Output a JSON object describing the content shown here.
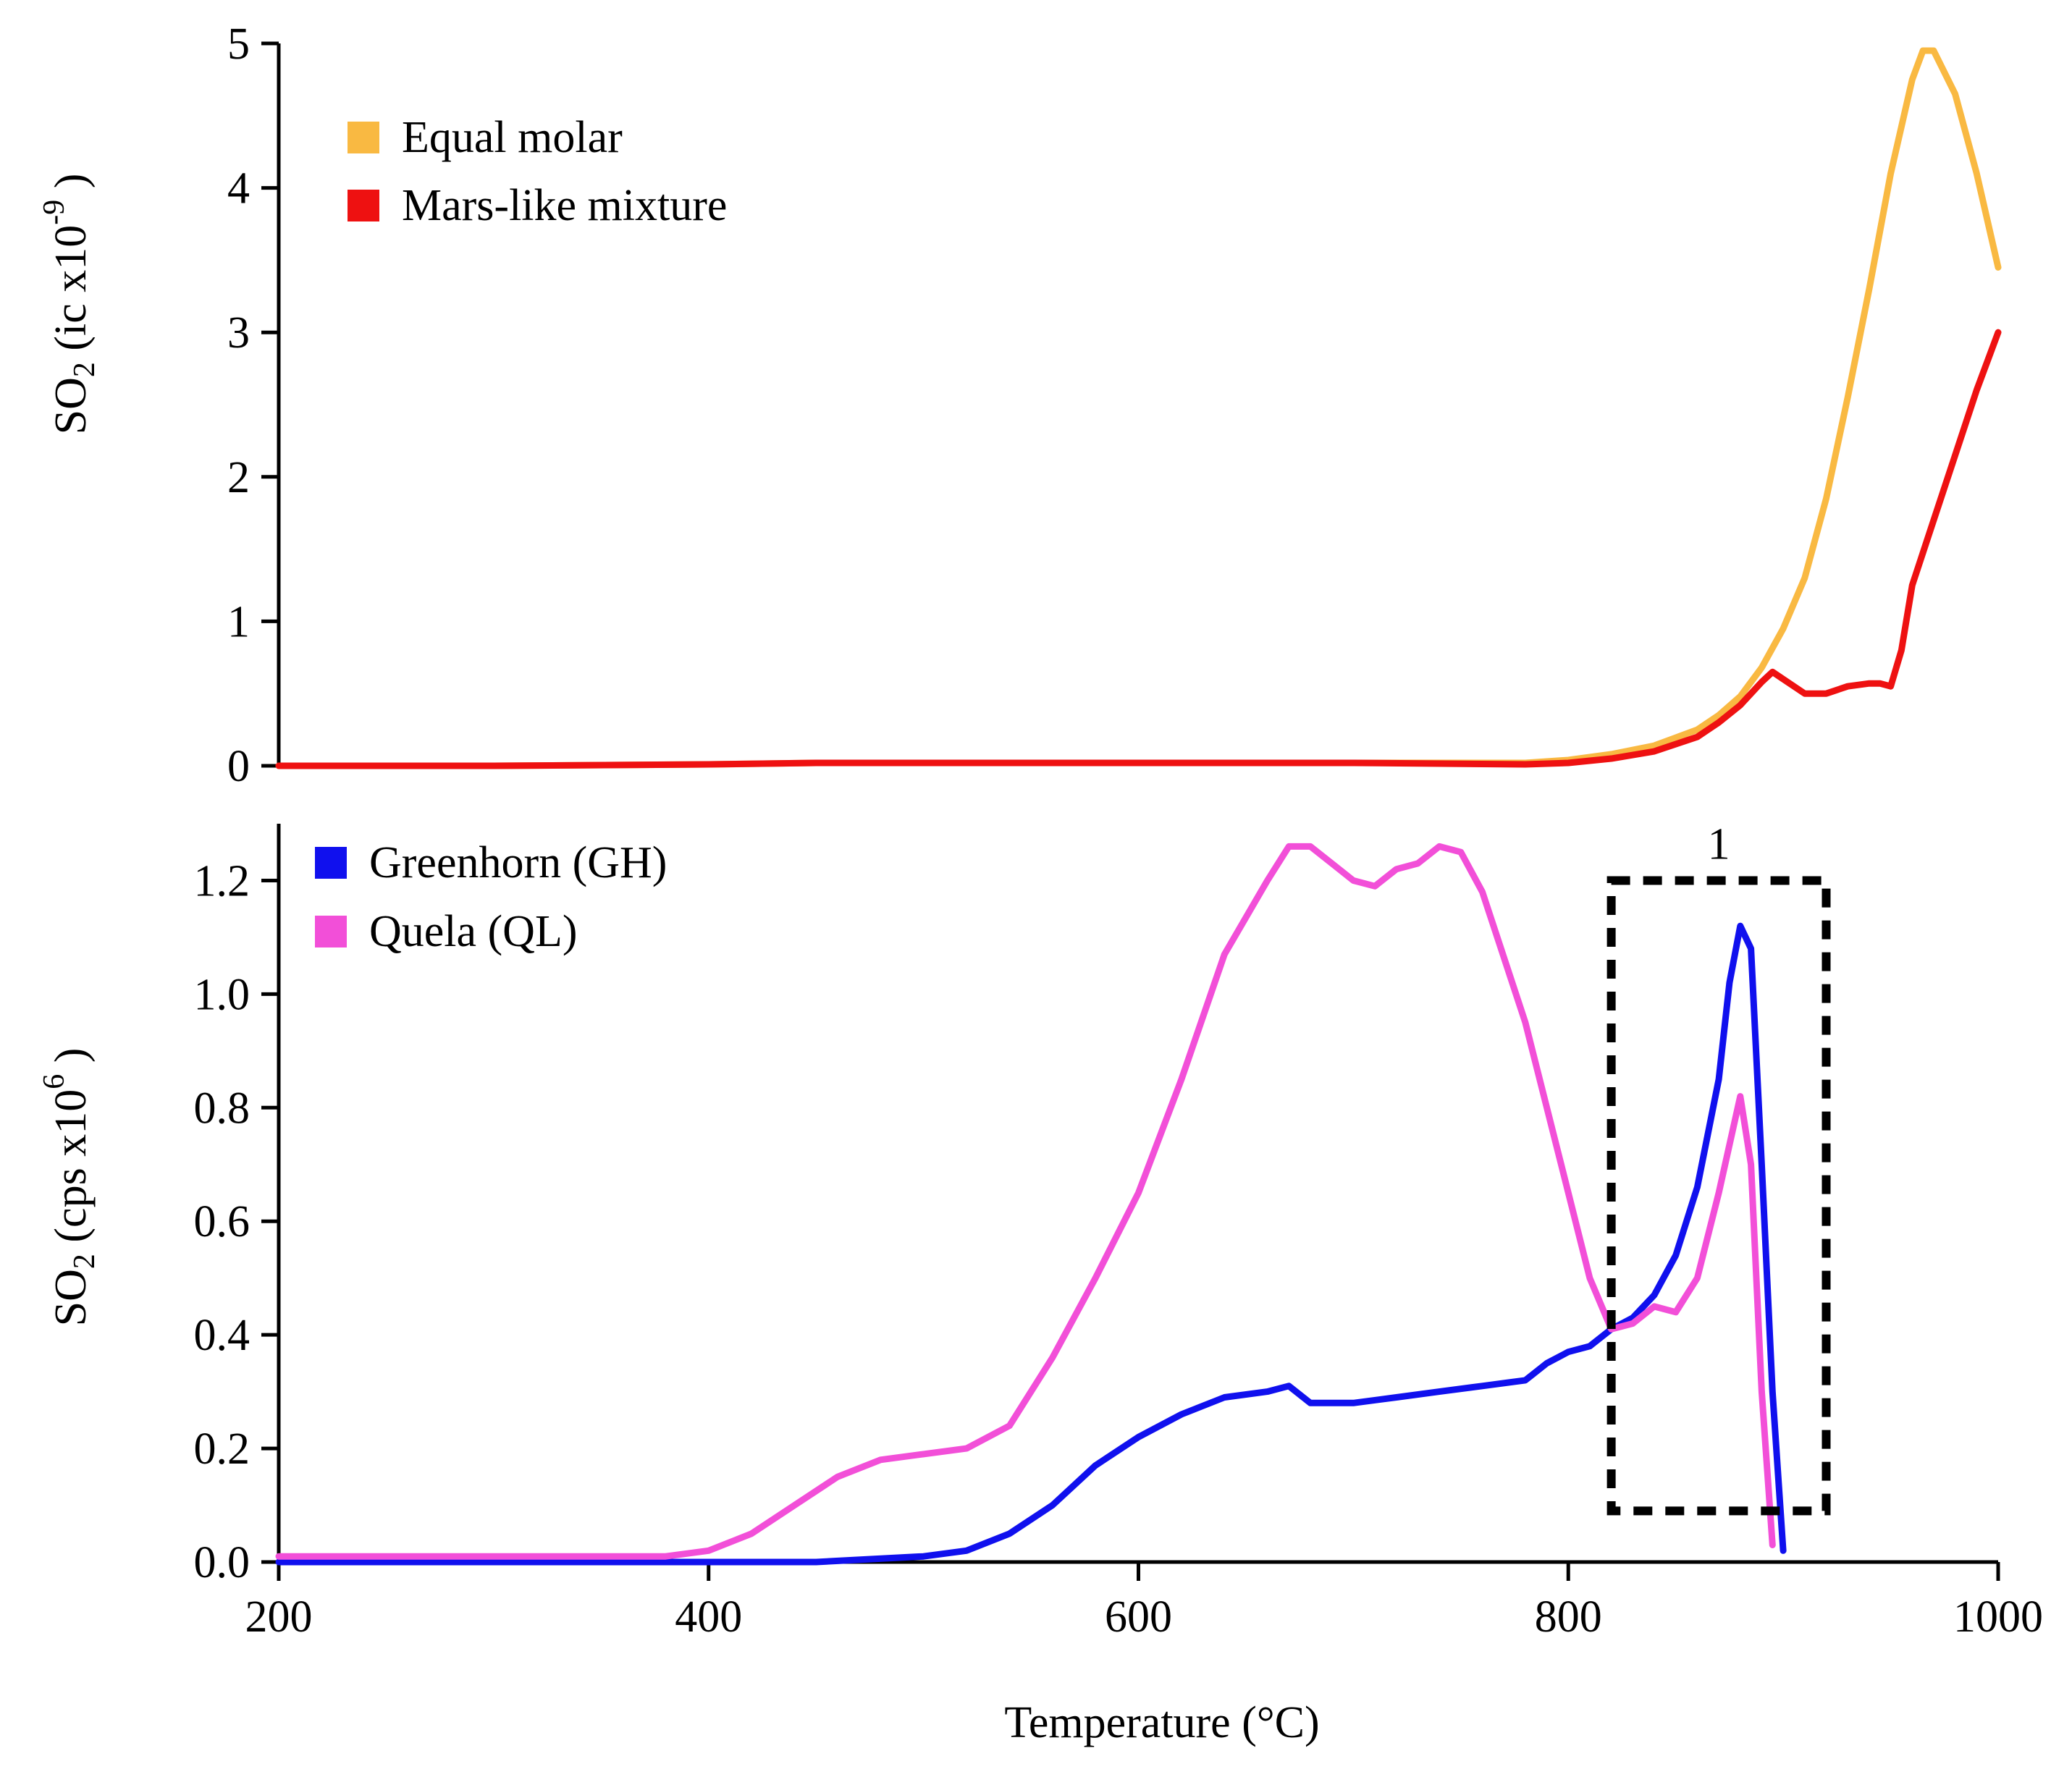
{
  "chart_data": [
    {
      "type": "line",
      "panel": "top",
      "xlabel": "",
      "ylabel": "SO",
      "ylabel_sub": "2",
      "ylabel_unit": "(ic x10",
      "ylabel_exp": "-9",
      "ylabel_close": ")",
      "xlim": [
        200,
        1000
      ],
      "ylim": [
        0,
        5
      ],
      "yticks": [
        "0",
        "1",
        "2",
        "3",
        "4",
        "5"
      ],
      "legend_position": "top-left",
      "series": [
        {
          "name": "Equal molar",
          "color": "#F9B942",
          "x": [
            200,
            300,
            400,
            450,
            500,
            600,
            700,
            780,
            800,
            820,
            840,
            860,
            870,
            880,
            890,
            900,
            910,
            920,
            930,
            940,
            950,
            960,
            965,
            970,
            980,
            990,
            1000
          ],
          "y": [
            0.0,
            0.0,
            0.01,
            0.02,
            0.02,
            0.02,
            0.02,
            0.02,
            0.04,
            0.08,
            0.14,
            0.25,
            0.35,
            0.48,
            0.68,
            0.95,
            1.3,
            1.85,
            2.55,
            3.3,
            4.1,
            4.75,
            4.95,
            4.95,
            4.65,
            4.1,
            3.45
          ]
        },
        {
          "name": "Mars-like mixture",
          "color": "#EE1111",
          "x": [
            200,
            300,
            400,
            450,
            500,
            600,
            700,
            780,
            800,
            820,
            840,
            860,
            870,
            880,
            890,
            895,
            900,
            910,
            920,
            930,
            940,
            945,
            950,
            955,
            960,
            970,
            980,
            990,
            1000
          ],
          "y": [
            0.0,
            0.0,
            0.01,
            0.02,
            0.02,
            0.02,
            0.02,
            0.01,
            0.02,
            0.05,
            0.1,
            0.2,
            0.3,
            0.42,
            0.58,
            0.65,
            0.6,
            0.5,
            0.5,
            0.55,
            0.57,
            0.57,
            0.55,
            0.8,
            1.25,
            1.7,
            2.15,
            2.6,
            3.0
          ]
        }
      ]
    },
    {
      "type": "line",
      "panel": "bottom",
      "xlabel": "Temperature (°C)",
      "ylabel": "SO",
      "ylabel_sub": "2",
      "ylabel_unit": "(cps x10",
      "ylabel_exp": "6",
      "ylabel_close": ")",
      "xlim": [
        200,
        1000
      ],
      "ylim": [
        0,
        1.3
      ],
      "yticks": [
        "0.0",
        "0.2",
        "0.4",
        "0.6",
        "0.8",
        "1.0",
        "1.2"
      ],
      "xticks": [
        "200",
        "400",
        "600",
        "800",
        "1000"
      ],
      "legend_position": "top-left",
      "series": [
        {
          "name": "Greenhorn (GH)",
          "color": "#1010EE",
          "x": [
            200,
            300,
            400,
            450,
            500,
            520,
            540,
            560,
            580,
            600,
            620,
            640,
            660,
            670,
            680,
            690,
            700,
            720,
            740,
            760,
            780,
            790,
            800,
            810,
            820,
            830,
            840,
            850,
            860,
            870,
            875,
            880,
            885,
            890,
            895,
            900
          ],
          "y": [
            0.0,
            0.0,
            0.0,
            0.0,
            0.01,
            0.02,
            0.05,
            0.1,
            0.17,
            0.22,
            0.26,
            0.29,
            0.3,
            0.31,
            0.28,
            0.28,
            0.28,
            0.29,
            0.3,
            0.31,
            0.32,
            0.35,
            0.37,
            0.38,
            0.41,
            0.43,
            0.47,
            0.54,
            0.66,
            0.85,
            1.02,
            1.12,
            1.08,
            0.7,
            0.3,
            0.02
          ]
        },
        {
          "name": "Quela (QL)",
          "color": "#F24FD8",
          "x": [
            200,
            300,
            350,
            380,
            400,
            420,
            440,
            460,
            480,
            500,
            520,
            540,
            560,
            580,
            600,
            620,
            640,
            660,
            670,
            680,
            690,
            700,
            710,
            720,
            730,
            740,
            750,
            760,
            780,
            800,
            810,
            820,
            830,
            840,
            850,
            860,
            870,
            880,
            885,
            890,
            895
          ],
          "y": [
            0.01,
            0.01,
            0.01,
            0.01,
            0.02,
            0.05,
            0.1,
            0.15,
            0.18,
            0.19,
            0.2,
            0.24,
            0.36,
            0.5,
            0.65,
            0.85,
            1.07,
            1.2,
            1.26,
            1.26,
            1.23,
            1.2,
            1.19,
            1.22,
            1.23,
            1.26,
            1.25,
            1.18,
            0.95,
            0.65,
            0.5,
            0.41,
            0.42,
            0.45,
            0.44,
            0.5,
            0.65,
            0.82,
            0.7,
            0.3,
            0.03
          ]
        }
      ],
      "annotations": [
        {
          "text": "1",
          "type": "dashed-box",
          "x_range": [
            820,
            920
          ],
          "y_range": [
            0.09,
            1.2
          ]
        }
      ]
    }
  ]
}
